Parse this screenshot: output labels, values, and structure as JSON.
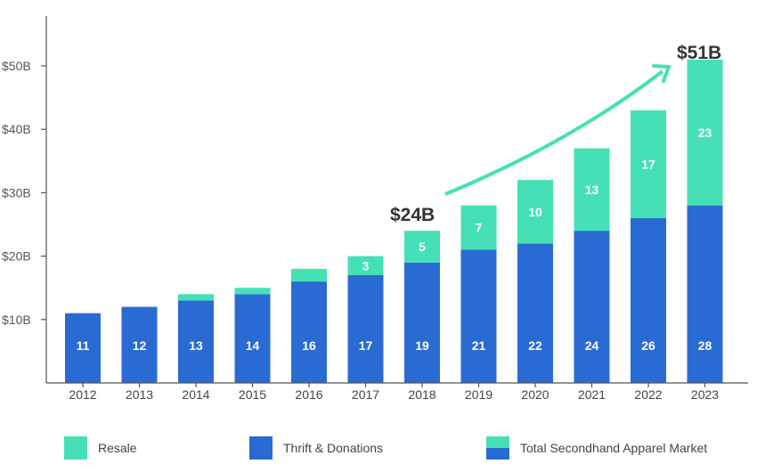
{
  "colors": {
    "resale": "#45e0b6",
    "thrift": "#2a6bd3",
    "axis": "#555555",
    "arrow": "#45e0b6"
  },
  "chart_data": {
    "type": "bar",
    "stacked": true,
    "categories": [
      "2012",
      "2013",
      "2014",
      "2015",
      "2016",
      "2017",
      "2018",
      "2019",
      "2020",
      "2021",
      "2022",
      "2023"
    ],
    "series": [
      {
        "name": "Thrift & Donations",
        "values": [
          11,
          12,
          13,
          14,
          16,
          17,
          19,
          21,
          22,
          24,
          26,
          28
        ],
        "data_labels": [
          "11",
          "12",
          "13",
          "14",
          "16",
          "17",
          "19",
          "21",
          "22",
          "24",
          "26",
          "28"
        ]
      },
      {
        "name": "Resale",
        "values": [
          0,
          0,
          1,
          1,
          2,
          3,
          5,
          7,
          10,
          13,
          17,
          23
        ],
        "data_labels": [
          "",
          "",
          "",
          "",
          "",
          "3",
          "5",
          "7",
          "10",
          "13",
          "17",
          "23"
        ]
      }
    ],
    "ylim": [
      0,
      58
    ],
    "yticks": [
      10,
      20,
      30,
      40,
      50
    ],
    "ytick_labels": [
      "$10B",
      "$20B",
      "$30B",
      "$40B",
      "$50B"
    ],
    "annotations": [
      {
        "text": "$24B",
        "category": "2018"
      },
      {
        "text": "$51B",
        "category": "2023"
      }
    ],
    "legend": {
      "placement": "bottom",
      "items": [
        "Resale",
        "Thrift & Donations",
        "Total Secondhand Apparel Market"
      ]
    }
  }
}
